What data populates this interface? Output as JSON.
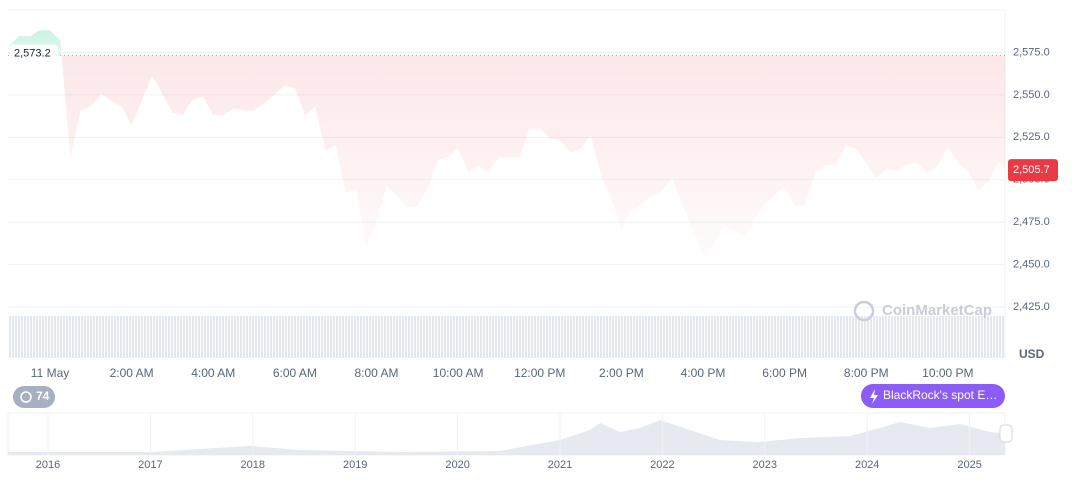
{
  "chart_data": {
    "type": "line",
    "color": "#ea3943",
    "above_color": "#16c784",
    "baseline": {
      "value": 2573.2,
      "label": "2,573.2"
    },
    "last_price": {
      "value": 2505.7,
      "label": "2,505.7"
    },
    "y_unit": "USD",
    "watermark": "CoinMarketCap",
    "events_count": 74,
    "event_label": "BlackRock's spot E…",
    "grid": true,
    "xlim": [
      -1.03,
      23.4
    ],
    "ylim": [
      2395,
      2600
    ],
    "xticks": [
      {
        "value": 0,
        "label": "11 May"
      },
      {
        "value": 2,
        "label": "2:00 AM"
      },
      {
        "value": 4,
        "label": "4:00 AM"
      },
      {
        "value": 6,
        "label": "6:00 AM"
      },
      {
        "value": 8,
        "label": "8:00 AM"
      },
      {
        "value": 10,
        "label": "10:00 AM"
      },
      {
        "value": 12,
        "label": "12:00 PM"
      },
      {
        "value": 14,
        "label": "2:00 PM"
      },
      {
        "value": 16,
        "label": "4:00 PM"
      },
      {
        "value": 18,
        "label": "6:00 PM"
      },
      {
        "value": 20,
        "label": "8:00 PM"
      },
      {
        "value": 22,
        "label": "10:00 PM"
      }
    ],
    "yticks": [
      {
        "value": 2425,
        "label": "2,425.0"
      },
      {
        "value": 2450,
        "label": "2,450.0"
      },
      {
        "value": 2475,
        "label": "2,475.0"
      },
      {
        "value": 2500,
        "label": "2,500.0"
      },
      {
        "value": 2525,
        "label": "2,525.0"
      },
      {
        "value": 2550,
        "label": "2,550.0"
      },
      {
        "value": 2575,
        "label": "2,575.0"
      }
    ],
    "x": [
      -1,
      -0.75,
      -0.5,
      -0.25,
      0,
      0.25,
      0.5,
      0.75,
      1,
      1.25,
      1.5,
      1.75,
      2,
      2.25,
      2.5,
      2.75,
      3,
      3.25,
      3.5,
      3.75,
      4,
      4.25,
      4.5,
      4.75,
      5,
      5.25,
      5.5,
      5.75,
      6,
      6.25,
      6.5,
      6.75,
      7,
      7.25,
      7.5,
      7.75,
      8,
      8.25,
      8.5,
      8.75,
      9,
      9.25,
      9.5,
      9.75,
      10,
      10.25,
      10.5,
      10.75,
      11,
      11.25,
      11.5,
      11.75,
      12,
      12.25,
      12.5,
      12.75,
      13,
      13.25,
      13.5,
      13.75,
      14,
      14.25,
      14.5,
      14.75,
      15,
      15.25,
      15.5,
      15.75,
      16,
      16.25,
      16.5,
      16.75,
      17,
      17.25,
      17.5,
      17.75,
      18,
      18.25,
      18.5,
      18.75,
      19,
      19.25,
      19.5,
      19.75,
      20,
      20.25,
      20.5,
      20.75,
      21,
      21.25,
      21.5,
      21.75,
      22,
      22.25,
      22.5,
      22.75,
      23,
      23.25,
      23.4
    ],
    "values": [
      2579.1,
      2585.0,
      2584.4,
      2588.0,
      2588.0,
      2582.1,
      2513.1,
      2540.8,
      2543.2,
      2550.8,
      2546.7,
      2543.2,
      2532.0,
      2546.7,
      2561.4,
      2550.8,
      2539.6,
      2537.9,
      2547.3,
      2549.1,
      2537.9,
      2537.9,
      2542.0,
      2540.8,
      2540.8,
      2544.9,
      2550.2,
      2555.5,
      2553.8,
      2537.9,
      2543.2,
      2517.2,
      2520.2,
      2491.9,
      2494.8,
      2459.4,
      2475.9,
      2496.6,
      2490.7,
      2483.6,
      2484.2,
      2494.8,
      2511.3,
      2513.7,
      2518.4,
      2504.2,
      2508.4,
      2504.2,
      2513.1,
      2513.1,
      2513.1,
      2530.2,
      2530.2,
      2524.3,
      2523.1,
      2516.0,
      2518.4,
      2526.1,
      2502.5,
      2488.9,
      2471.2,
      2481.8,
      2486.0,
      2490.1,
      2493.6,
      2501.3,
      2484.8,
      2471.2,
      2455.3,
      2461.2,
      2473.6,
      2470.0,
      2466.5,
      2475.9,
      2485.4,
      2490.7,
      2496.0,
      2484.8,
      2484.8,
      2504.2,
      2508.4,
      2509.0,
      2520.2,
      2518.4,
      2509.6,
      2500.7,
      2506.6,
      2505.4,
      2509.0,
      2510.1,
      2503.7,
      2508.4,
      2519.6,
      2509.6,
      2505.4,
      2493.6,
      2499.5,
      2510.7,
      2505.7
    ],
    "navigator": {
      "years": [
        2016,
        2017,
        2018,
        2019,
        2020,
        2021,
        2022,
        2023,
        2024,
        2025
      ]
    }
  }
}
